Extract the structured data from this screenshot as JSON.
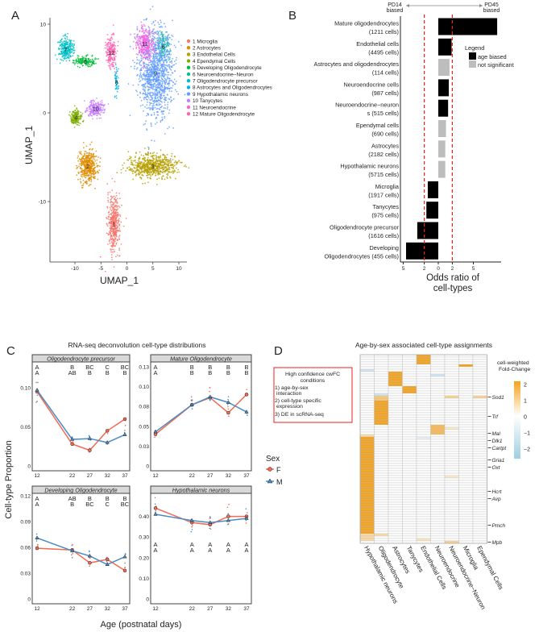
{
  "panels": {
    "a": "A",
    "b": "B",
    "c": "C",
    "d": "D"
  },
  "colors": {
    "female": "#F26A4F",
    "male": "#4A8CC4",
    "age_biased": "#000000",
    "not_significant": "#BDBDBD",
    "cutoff": "#E8211B",
    "heat_high": "#F5A21B",
    "heat_low": "#9ECFE0"
  },
  "chart_data": [
    {
      "type": "scatter",
      "id": "umap",
      "xlabel": "UMAP_1",
      "ylabel": "UMAP_1",
      "xlim": [
        -14,
        11
      ],
      "ylim": [
        -17,
        10.5
      ],
      "xticks": [
        "-10",
        "-5",
        "0",
        "5",
        "10"
      ],
      "xtick_values": [
        -10,
        -5,
        0,
        5,
        10
      ],
      "yticks": [
        "10",
        "0",
        "-10"
      ],
      "ytick_values": [
        10,
        0,
        -10
      ],
      "legend": "right",
      "clusters": [
        {
          "id": "1",
          "label": "1 Microglia",
          "color": "#F8766D",
          "center": [
            -2.5,
            -12.5
          ],
          "spread": [
            1.1,
            2.8
          ],
          "n": 450
        },
        {
          "id": "2",
          "label": "2 Astrocytes",
          "color": "#DE8C00",
          "center": [
            -7.5,
            -6
          ],
          "spread": [
            1.6,
            1.7
          ],
          "n": 450
        },
        {
          "id": "3",
          "label": "3 Endothelial Cells",
          "color": "#B79F00",
          "center": [
            5,
            -6
          ],
          "spread": [
            4.3,
            1.2
          ],
          "n": 650
        },
        {
          "id": "4",
          "label": "4 Ependymal Cells",
          "color": "#7CAE00",
          "center": [
            -9.8,
            -0.5
          ],
          "spread": [
            0.9,
            0.7
          ],
          "n": 180
        },
        {
          "id": "5",
          "label": "5 Developing Oligodendrocyte",
          "color": "#00BA38",
          "center": [
            -8,
            5.8
          ],
          "spread": [
            2,
            0.5
          ],
          "n": 150
        },
        {
          "id": "6",
          "label": "6 Neuroendocrine−Neuron",
          "color": "#00C08B",
          "center": [
            7,
            7.5
          ],
          "spread": [
            1.2,
            1.4
          ],
          "n": 120
        },
        {
          "id": "7",
          "label": "7 Oligodendrocyte precursor",
          "color": "#00BFC4",
          "center": [
            -11.8,
            7.2
          ],
          "spread": [
            1.3,
            1.1
          ],
          "n": 260
        },
        {
          "id": "8",
          "label": "8 Astrocytes and Oligodendrocytes",
          "color": "#00B4F0",
          "center": [
            -2,
            3.5
          ],
          "spread": [
            0.3,
            1.8
          ],
          "n": 50
        },
        {
          "id": "9",
          "label": "9 Hypothalamic neurons",
          "color": "#619CFF",
          "center": [
            5.5,
            4.5
          ],
          "spread": [
            3,
            4.6
          ],
          "n": 1200
        },
        {
          "id": "10",
          "label": "10 Tanycytes",
          "color": "#C77CFF",
          "center": [
            -6,
            0.5
          ],
          "spread": [
            1.5,
            0.8
          ],
          "n": 220
        },
        {
          "id": "11",
          "label": "11 Neuroendocrine",
          "color": "#F564E3",
          "center": [
            3.5,
            7.8
          ],
          "spread": [
            1.6,
            1.6
          ],
          "n": 300
        },
        {
          "id": "12",
          "label": "12 Mature Oligodendrocyte",
          "color": "#FF64B0",
          "center": [
            -3,
            6.8
          ],
          "spread": [
            0.9,
            1.8
          ],
          "n": 200
        }
      ]
    },
    {
      "type": "bar",
      "id": "odds-ratio",
      "orientation": "horizontal",
      "xlabel": "Odds ratio of\ncell-types",
      "xlabel_lines": [
        "Odds ratio of",
        "cell-types"
      ],
      "direction_left": [
        "PD14",
        "biased"
      ],
      "direction_right": [
        "PD45",
        "biased"
      ],
      "xticks": [
        "5",
        "2",
        "0",
        "2",
        "5"
      ],
      "xtick_values": [
        -5,
        -2,
        0,
        2,
        5
      ],
      "cutoffs": [
        -2,
        2
      ],
      "legend": {
        "title": "Legend",
        "items": [
          "age biased",
          "not significant"
        ],
        "placement": "top-right"
      },
      "categories": [
        {
          "lines": [
            "Mature oligodendrocytes",
            "(1211 cells)"
          ],
          "value": 8.4,
          "status": "age biased"
        },
        {
          "lines": [
            "Endothelial cells",
            "(4495 cells)"
          ],
          "value": 1.9,
          "status": "age biased"
        },
        {
          "lines": [
            "Astrocytes and oligodendrocytes",
            "(114 cells)"
          ],
          "value": 1.6,
          "status": "not significant"
        },
        {
          "lines": [
            "Neuroendocrine cells",
            "(987 cells)"
          ],
          "value": 1.5,
          "status": "age biased"
        },
        {
          "lines": [
            "Neuroendocrine−neuron",
            "s (515 cells)"
          ],
          "value": 1.4,
          "status": "age biased"
        },
        {
          "lines": [
            "Ependymal cells",
            "(690 cells)"
          ],
          "value": 1.1,
          "status": "not significant"
        },
        {
          "lines": [
            "Astrocytes",
            "(2182 cells)"
          ],
          "value": 1.0,
          "status": "not significant"
        },
        {
          "lines": [
            "Hypothalamic neurons",
            "(5715 cells)"
          ],
          "value": 1.0,
          "status": "not significant"
        },
        {
          "lines": [
            "Microglia",
            "(1917 cells)"
          ],
          "value": -1.5,
          "status": "age biased"
        },
        {
          "lines": [
            "Tanycytes",
            "(975 cells)"
          ],
          "value": -1.7,
          "status": "age biased"
        },
        {
          "lines": [
            "Oligodendrocyte precursor",
            "(1616 cells)"
          ],
          "value": -3.0,
          "status": "age biased"
        },
        {
          "lines": [
            "Developing",
            "Oligodendrocytes (455 cells)"
          ],
          "value": -4.6,
          "status": "age biased"
        }
      ]
    },
    {
      "type": "line",
      "id": "deconvolution",
      "title": "RNA-seq deconvolution cell-type distributions",
      "xlabel": "Age (postnatal days)",
      "ylabel": "Cell-type Proportion",
      "x": [
        12,
        22,
        27,
        32,
        37
      ],
      "xticks": [
        "12",
        "22",
        "27",
        "32",
        "37"
      ],
      "legend": {
        "title": "Sex",
        "items": [
          "F",
          "M"
        ],
        "placement": "right"
      },
      "facets": [
        {
          "title": "Oligodendrocyte precursor",
          "ylim": [
            0,
            0.13
          ],
          "yticks": [
            "0",
            "0.05",
            "0.10"
          ],
          "ytick_values": [
            0,
            0.05,
            0.1
          ],
          "F": [
            0.095,
            0.028,
            0.02,
            0.045,
            0.06
          ],
          "M": [
            0.097,
            0.034,
            0.035,
            0.03,
            0.04
          ],
          "letters_M": [
            "A",
            "B",
            "BC",
            "C",
            "BC"
          ],
          "letters_F": [
            "A",
            "AB",
            "B",
            "B",
            "B"
          ]
        },
        {
          "title": "Mature Oligodendrocyte",
          "ylim": [
            0,
            0.128
          ],
          "yticks": [
            "0",
            "0.03",
            "0.05",
            "0.08",
            "0.10",
            "0.13"
          ],
          "ytick_values": [
            0,
            0.025,
            0.05,
            0.075,
            0.1,
            0.125
          ],
          "F": [
            0.04,
            0.077,
            0.086,
            0.067,
            0.09
          ],
          "M": [
            0.043,
            0.077,
            0.087,
            0.08,
            0.068
          ],
          "letters_M": [
            "A",
            "B",
            "B",
            "B",
            "B"
          ],
          "letters_F": [
            "A",
            "B",
            "B",
            "B",
            "B"
          ]
        },
        {
          "title": "Developing Oligodendrocyte",
          "ylim": [
            0,
            0.12
          ],
          "yticks": [
            "0",
            "0.03",
            "0.06",
            "0.09",
            "0.12"
          ],
          "ytick_values": [
            0,
            0.03,
            0.06,
            0.09,
            0.12
          ],
          "F": [
            0.059,
            0.057,
            0.042,
            0.046,
            0.033
          ],
          "M": [
            0.071,
            0.056,
            0.05,
            0.04,
            0.049
          ],
          "letters_M": [
            "A",
            "AB",
            "B",
            "B",
            "B"
          ],
          "letters_F": [
            "A",
            "B",
            "BC",
            "C",
            "BC"
          ]
        },
        {
          "title": "Hypothalamic neurons",
          "ylim": [
            0,
            0.5
          ],
          "yticks": [
            "0",
            "0.10",
            "0.20",
            "0.30",
            "0.40"
          ],
          "ytick_values": [
            0,
            0.1,
            0.2,
            0.3,
            0.4
          ],
          "F": [
            0.44,
            0.37,
            0.36,
            0.4,
            0.4
          ],
          "M": [
            0.41,
            0.38,
            0.37,
            0.38,
            0.39
          ],
          "letters_M": [
            "A",
            "A",
            "A",
            "A",
            "A"
          ],
          "letters_F": [
            "A",
            "A",
            "A",
            "A",
            "A"
          ]
        }
      ]
    },
    {
      "type": "heatmap",
      "id": "cwfc",
      "title": "Age-by-sex associated cell-type assignments",
      "columns": [
        "Hypothalamic neurons",
        "Oligodendrocyte",
        "Astrocytes",
        "Tanycytes",
        "Endothelial Cells",
        "Neuroendocrine",
        "Neuroendocrine−Neuron",
        "Microglia",
        "Ependymal Cells"
      ],
      "n_rows": 78,
      "row_labels": [
        {
          "row": 17,
          "gene": "Sod1"
        },
        {
          "row": 25,
          "gene": "Trf"
        },
        {
          "row": 32,
          "gene": "Mal"
        },
        {
          "row": 35,
          "gene": "Dlk1"
        },
        {
          "row": 38,
          "gene": "Cartpt"
        },
        {
          "row": 43,
          "gene": "Gria1"
        },
        {
          "row": 46,
          "gene": "Oxt"
        },
        {
          "row": 56,
          "gene": "Hcrt"
        },
        {
          "row": 59,
          "gene": "Avp"
        },
        {
          "row": 70,
          "gene": "Pmch"
        },
        {
          "row": 77,
          "gene": "Mpb"
        }
      ],
      "blocks": [
        {
          "col": 4,
          "rows": [
            0,
            3
          ],
          "value": 2
        },
        {
          "col": 7,
          "rows": [
            4,
            4
          ],
          "value": 2
        },
        {
          "col": 0,
          "rows": [
            6,
            6
          ],
          "value": -1
        },
        {
          "col": 5,
          "rows": [
            8,
            8
          ],
          "value": -1
        },
        {
          "col": 2,
          "rows": [
            7,
            12
          ],
          "value": 2
        },
        {
          "col": 3,
          "rows": [
            13,
            15
          ],
          "value": 2
        },
        {
          "col": 1,
          "rows": [
            16,
            16
          ],
          "value": -1
        },
        {
          "col": 1,
          "rows": [
            17,
            18
          ],
          "value": 1.2
        },
        {
          "col": 1,
          "rows": [
            19,
            28
          ],
          "value": 2
        },
        {
          "col": 6,
          "rows": [
            17,
            17
          ],
          "value": 1
        },
        {
          "col": 8,
          "rows": [
            17,
            17
          ],
          "value": 1
        },
        {
          "col": 0,
          "rows": [
            33,
            33
          ],
          "value": 0.8
        },
        {
          "col": 0,
          "rows": [
            34,
            73
          ],
          "value": 2
        },
        {
          "col": 0,
          "rows": [
            74,
            76
          ],
          "value": 0.8
        },
        {
          "col": 5,
          "rows": [
            29,
            32
          ],
          "value": 1.5
        },
        {
          "col": 6,
          "rows": [
            30,
            30
          ],
          "value": 0.5
        },
        {
          "col": 4,
          "rows": [
            34,
            34
          ],
          "value": -0.5
        },
        {
          "col": 6,
          "rows": [
            50,
            50
          ],
          "value": 0.5
        },
        {
          "col": 1,
          "rows": [
            74,
            74
          ],
          "value": 0.8
        },
        {
          "col": 4,
          "rows": [
            76,
            76
          ],
          "value": 0.6
        },
        {
          "col": 6,
          "rows": [
            77,
            77
          ],
          "value": 1
        }
      ],
      "legend": {
        "title_lines": [
          "cell-weighted",
          "Fold-Change"
        ],
        "ticks": [
          "2",
          "1",
          "0",
          "−1",
          "−2"
        ],
        "tick_values": [
          2,
          1,
          0,
          -1,
          -2
        ]
      },
      "criteria_box": {
        "lines": [
          "High confidence cwFC",
          "conditions",
          "1) age-by-sex",
          "interaction",
          "2) cell-type specific",
          "expression",
          "3) DE in scRNA-seq"
        ]
      }
    }
  ]
}
